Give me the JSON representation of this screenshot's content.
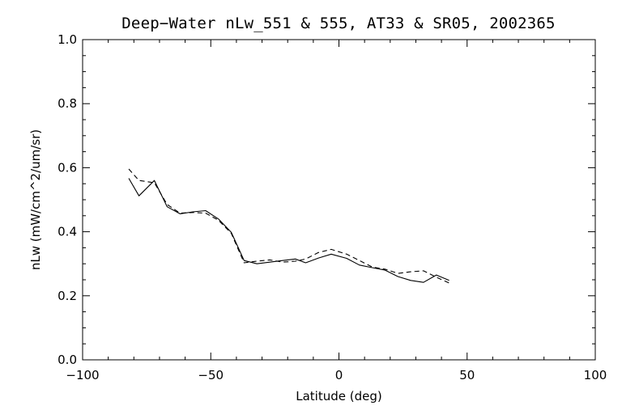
{
  "chart_data": {
    "type": "line",
    "title": "Deep−Water nLw_551 & 555, AT33 & SR05, 2002365",
    "xlabel": "Latitude (deg)",
    "ylabel": "nLw (mW/cm^2/um/sr)",
    "xlim": [
      -100,
      100
    ],
    "ylim": [
      0.0,
      1.0
    ],
    "x_ticks": [
      -100,
      -50,
      0,
      50,
      100
    ],
    "x_tick_labels": [
      "−100",
      "−50",
      "0",
      "50",
      "100"
    ],
    "y_ticks": [
      0.0,
      0.2,
      0.4,
      0.6,
      0.8,
      1.0
    ],
    "y_tick_labels": [
      "0.0",
      "0.2",
      "0.4",
      "0.6",
      "0.8",
      "1.0"
    ],
    "grid": false,
    "series": [
      {
        "style": "solid",
        "x": [
          -82,
          -78,
          -72,
          -67,
          -62,
          -57,
          -52,
          -47,
          -42,
          -37,
          -32,
          -27,
          -22,
          -17,
          -13,
          -8,
          -3,
          3,
          8,
          13,
          18,
          23,
          28,
          33,
          38,
          43
        ],
        "y": [
          0.567,
          0.512,
          0.56,
          0.478,
          0.456,
          0.462,
          0.466,
          0.44,
          0.398,
          0.31,
          0.3,
          0.305,
          0.31,
          0.315,
          0.303,
          0.318,
          0.33,
          0.317,
          0.296,
          0.288,
          0.28,
          0.26,
          0.248,
          0.242,
          0.265,
          0.248
        ]
      },
      {
        "style": "dashed",
        "x": [
          -82,
          -78,
          -72,
          -67,
          -62,
          -57,
          -52,
          -47,
          -42,
          -37,
          -32,
          -27,
          -22,
          -17,
          -13,
          -8,
          -3,
          3,
          8,
          13,
          18,
          23,
          28,
          33,
          38,
          43
        ],
        "y": [
          0.596,
          0.56,
          0.553,
          0.485,
          0.458,
          0.46,
          0.458,
          0.436,
          0.395,
          0.303,
          0.308,
          0.312,
          0.305,
          0.308,
          0.315,
          0.335,
          0.345,
          0.33,
          0.31,
          0.29,
          0.283,
          0.27,
          0.275,
          0.278,
          0.258,
          0.24
        ]
      }
    ]
  }
}
